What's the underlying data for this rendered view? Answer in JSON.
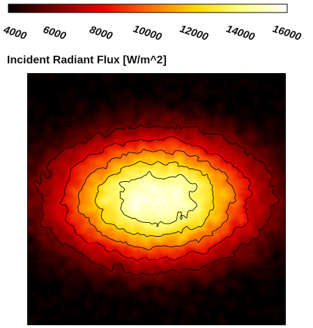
{
  "chart_data": {
    "type": "heatmap",
    "title": "Incident Radiant Flux [W/m^2]",
    "colorbar": {
      "min": 4000,
      "max": 16000,
      "ticks": [
        4000,
        6000,
        8000,
        10000,
        12000,
        14000,
        16000
      ],
      "tick_labels": [
        "4000",
        "6000",
        "8000",
        "10000",
        "12000",
        "14000",
        "16000"
      ],
      "colormap": [
        "#000000",
        "#7a0000",
        "#e10000",
        "#ff6a00",
        "#ffd400",
        "#ffff80",
        "#ffffff"
      ]
    },
    "field": {
      "peak_value": 15500,
      "background_value": 4000,
      "shape": "elliptical hot zone, wide horizontally, centred in frame",
      "contour_levels": [
        6000,
        8000,
        10000,
        12000,
        14000
      ],
      "contour_color": "#000000"
    },
    "grid": false,
    "legend": "top"
  }
}
